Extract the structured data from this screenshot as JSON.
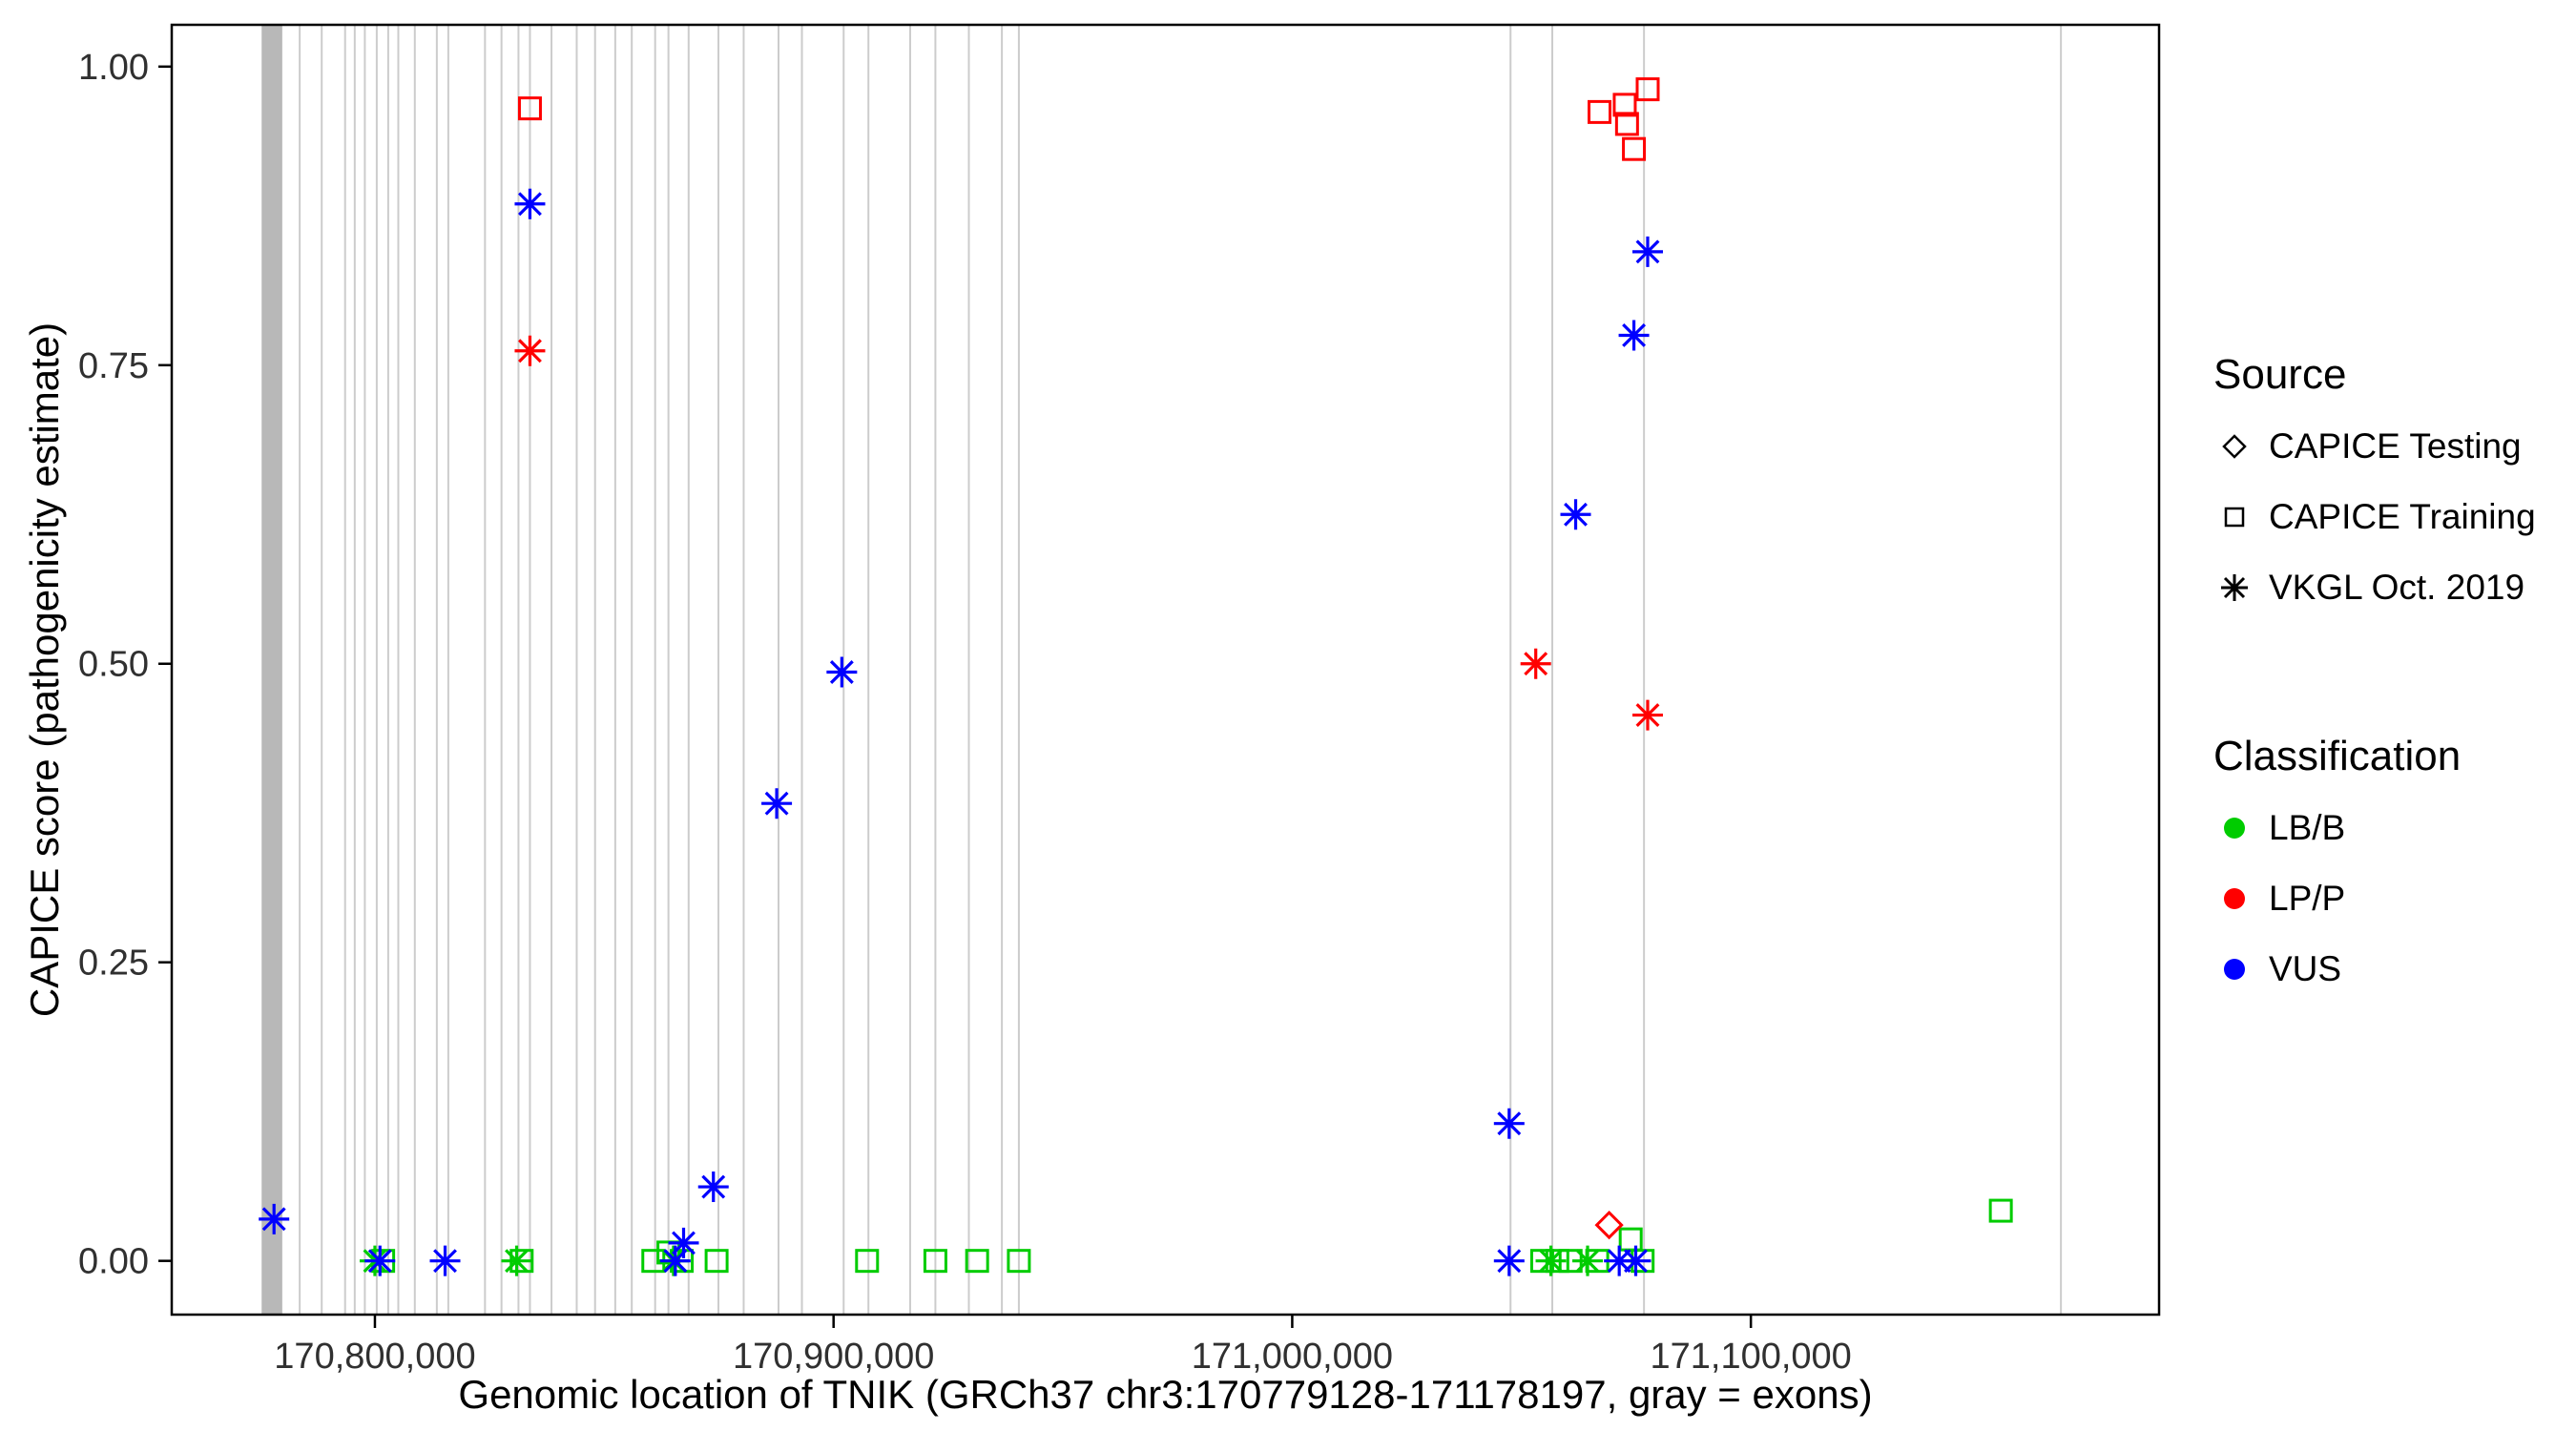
{
  "axes": {
    "x_label": "Genomic location of TNIK (GRCh37 chr3:170779128-171178197, gray = exons)",
    "y_label": "CAPICE score (pathogenicity estimate)",
    "x_ticks": [
      {
        "value": 170800000,
        "label": "170,800,000"
      },
      {
        "value": 170900000,
        "label": "170,900,000"
      },
      {
        "value": 171000000,
        "label": "171,000,000"
      },
      {
        "value": 171100000,
        "label": "171,100,000"
      }
    ],
    "y_ticks": [
      {
        "value": 0.0,
        "label": "0.00"
      },
      {
        "value": 0.25,
        "label": "0.25"
      },
      {
        "value": 0.5,
        "label": "0.50"
      },
      {
        "value": 0.75,
        "label": "0.75"
      },
      {
        "value": 1.0,
        "label": "1.00"
      }
    ]
  },
  "legend": {
    "source_title": "Source",
    "source_items": [
      {
        "label": "CAPICE Testing",
        "shape": "diamond"
      },
      {
        "label": "CAPICE Training",
        "shape": "square"
      },
      {
        "label": "VKGL Oct. 2019",
        "shape": "asterisk"
      }
    ],
    "classification_title": "Classification",
    "classification_items": [
      {
        "label": "LB/B",
        "color": "#00CC00"
      },
      {
        "label": "LP/P",
        "color": "#FF0000"
      },
      {
        "label": "VUS",
        "color": "#0000FF"
      }
    ]
  },
  "chart_data": {
    "type": "scatter",
    "title": "",
    "xlabel": "Genomic location of TNIK (GRCh37 chr3:170779128-171178197, gray = exons)",
    "ylabel": "CAPICE score (pathogenicity estimate)",
    "x_domain": [
      170755700,
      171189000
    ],
    "y_domain": [
      -0.045,
      1.035
    ],
    "colors": {
      "LB/B": "#00CC00",
      "LP/P": "#FF0000",
      "VUS": "#0000FF"
    },
    "style": {
      "exon_line_color": "#CCCCCC",
      "exon_band_color": "#B8B8B8",
      "exon_line_width": 2
    },
    "exons": {
      "band": {
        "start": 170775300,
        "end": 170779800
      },
      "lines": [
        170783600,
        170788400,
        170793500,
        170795600,
        170797800,
        170800400,
        170802900,
        170805100,
        170808700,
        170813500,
        170816000,
        170824000,
        170827600,
        170831300,
        170833800,
        170838500,
        170844000,
        170848000,
        170852400,
        170856000,
        170861100,
        170864000,
        170868400,
        170874900,
        170880400,
        170888000,
        170893100,
        170902200,
        170907600,
        170916700,
        170922200,
        170929500,
        170936700,
        170940400,
        171047600,
        171056700,
        171076700,
        171167600
      ]
    },
    "points": [
      {
        "x": 170778000,
        "y": 0.035,
        "source": "VKGL Oct. 2019",
        "classification": "VUS"
      },
      {
        "x": 170833800,
        "y": 0.885,
        "source": "VKGL Oct. 2019",
        "classification": "VUS"
      },
      {
        "x": 171077500,
        "y": 0.845,
        "source": "VKGL Oct. 2019",
        "classification": "VUS"
      },
      {
        "x": 171074500,
        "y": 0.775,
        "source": "VKGL Oct. 2019",
        "classification": "VUS"
      },
      {
        "x": 171061800,
        "y": 0.625,
        "source": "VKGL Oct. 2019",
        "classification": "VUS"
      },
      {
        "x": 170901800,
        "y": 0.493,
        "source": "VKGL Oct. 2019",
        "classification": "VUS"
      },
      {
        "x": 170887600,
        "y": 0.383,
        "source": "VKGL Oct. 2019",
        "classification": "VUS"
      },
      {
        "x": 171047300,
        "y": 0.115,
        "source": "VKGL Oct. 2019",
        "classification": "VUS"
      },
      {
        "x": 170873800,
        "y": 0.062,
        "source": "VKGL Oct. 2019",
        "classification": "VUS"
      },
      {
        "x": 170867300,
        "y": 0.015,
        "source": "VKGL Oct. 2019",
        "classification": "VUS"
      },
      {
        "x": 170801100,
        "y": 0.0,
        "source": "VKGL Oct. 2019",
        "classification": "VUS"
      },
      {
        "x": 170815300,
        "y": 0.0,
        "source": "VKGL Oct. 2019",
        "classification": "VUS"
      },
      {
        "x": 170865500,
        "y": 0.0,
        "source": "VKGL Oct. 2019",
        "classification": "VUS"
      },
      {
        "x": 171047300,
        "y": 0.0,
        "source": "VKGL Oct. 2019",
        "classification": "VUS"
      },
      {
        "x": 171071300,
        "y": 0.0,
        "source": "VKGL Oct. 2019",
        "classification": "VUS"
      },
      {
        "x": 171074900,
        "y": 0.0,
        "source": "VKGL Oct. 2019",
        "classification": "VUS"
      },
      {
        "x": 170833800,
        "y": 0.762,
        "source": "VKGL Oct. 2019",
        "classification": "LP/P"
      },
      {
        "x": 171053100,
        "y": 0.5,
        "source": "VKGL Oct. 2019",
        "classification": "LP/P"
      },
      {
        "x": 171077500,
        "y": 0.457,
        "source": "VKGL Oct. 2019",
        "classification": "LP/P"
      },
      {
        "x": 170833800,
        "y": 0.965,
        "source": "CAPICE Training",
        "classification": "LP/P"
      },
      {
        "x": 171067000,
        "y": 0.962,
        "source": "CAPICE Training",
        "classification": "LP/P"
      },
      {
        "x": 171072500,
        "y": 0.968,
        "source": "CAPICE Training",
        "classification": "LP/P"
      },
      {
        "x": 171077500,
        "y": 0.981,
        "source": "CAPICE Training",
        "classification": "LP/P"
      },
      {
        "x": 171073000,
        "y": 0.952,
        "source": "CAPICE Training",
        "classification": "LP/P"
      },
      {
        "x": 171074500,
        "y": 0.931,
        "source": "CAPICE Training",
        "classification": "LP/P"
      },
      {
        "x": 171069100,
        "y": 0.03,
        "source": "CAPICE Testing",
        "classification": "LP/P"
      },
      {
        "x": 170800000,
        "y": 0.0,
        "source": "VKGL Oct. 2019",
        "classification": "LB/B"
      },
      {
        "x": 170830900,
        "y": 0.0,
        "source": "VKGL Oct. 2019",
        "classification": "LB/B"
      },
      {
        "x": 170865100,
        "y": 0.0,
        "source": "VKGL Oct. 2019",
        "classification": "LB/B"
      },
      {
        "x": 171056400,
        "y": 0.0,
        "source": "VKGL Oct. 2019",
        "classification": "LB/B"
      },
      {
        "x": 171064400,
        "y": 0.0,
        "source": "VKGL Oct. 2019",
        "classification": "LB/B"
      },
      {
        "x": 170801800,
        "y": 0.0,
        "source": "CAPICE Training",
        "classification": "LB/B"
      },
      {
        "x": 170832000,
        "y": 0.0,
        "source": "CAPICE Training",
        "classification": "LB/B"
      },
      {
        "x": 170860700,
        "y": 0.0,
        "source": "CAPICE Training",
        "classification": "LB/B"
      },
      {
        "x": 170864000,
        "y": 0.007,
        "source": "CAPICE Training",
        "classification": "LB/B"
      },
      {
        "x": 170866900,
        "y": 0.0,
        "source": "CAPICE Training",
        "classification": "LB/B"
      },
      {
        "x": 170874500,
        "y": 0.0,
        "source": "CAPICE Training",
        "classification": "LB/B"
      },
      {
        "x": 170907300,
        "y": 0.0,
        "source": "CAPICE Training",
        "classification": "LB/B"
      },
      {
        "x": 170922200,
        "y": 0.0,
        "source": "CAPICE Training",
        "classification": "LB/B"
      },
      {
        "x": 170931300,
        "y": 0.0,
        "source": "CAPICE Training",
        "classification": "LB/B"
      },
      {
        "x": 170940400,
        "y": 0.0,
        "source": "CAPICE Training",
        "classification": "LB/B"
      },
      {
        "x": 171054500,
        "y": 0.0,
        "source": "CAPICE Training",
        "classification": "LB/B"
      },
      {
        "x": 171057800,
        "y": 0.0,
        "source": "CAPICE Training",
        "classification": "LB/B"
      },
      {
        "x": 171060700,
        "y": 0.0,
        "source": "CAPICE Training",
        "classification": "LB/B"
      },
      {
        "x": 171066500,
        "y": 0.0,
        "source": "CAPICE Training",
        "classification": "LB/B"
      },
      {
        "x": 171073800,
        "y": 0.018,
        "source": "CAPICE Training",
        "classification": "LB/B"
      },
      {
        "x": 171076400,
        "y": 0.0,
        "source": "CAPICE Training",
        "classification": "LB/B"
      },
      {
        "x": 171154500,
        "y": 0.042,
        "source": "CAPICE Training",
        "classification": "LB/B"
      }
    ]
  }
}
